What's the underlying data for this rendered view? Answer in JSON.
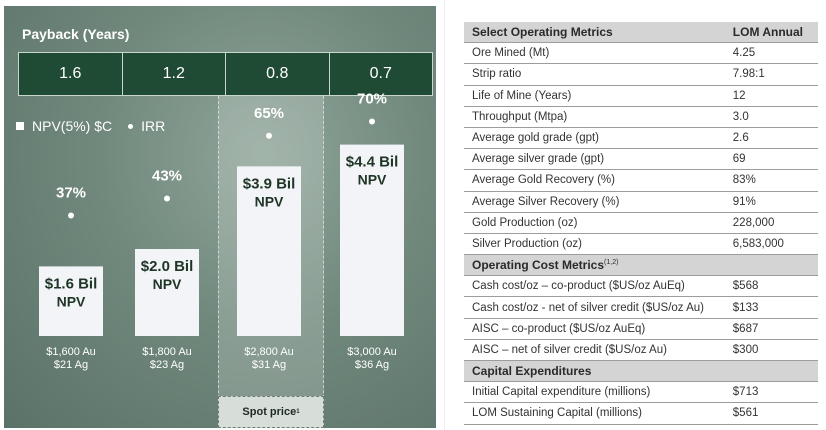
{
  "chart": {
    "title": "Payback (Years)",
    "payback_values": [
      "1.6",
      "1.2",
      "0.8",
      "0.7"
    ],
    "legend_npv": "NPV(5%) $C",
    "legend_irr": "IRR",
    "spot_price_label": "Spot price",
    "spot_price_sup": "1"
  },
  "chart_data": {
    "type": "bar",
    "categories": [
      "$1,600 Au\n$21 Ag",
      "$1,800 Au\n$23 Ag",
      "$2,800 Au\n$31 Ag",
      "$3,000 Au\n$36 Ag"
    ],
    "category_lines": [
      [
        "$1,600 Au",
        "$21 Ag"
      ],
      [
        "$1,800 Au",
        "$23 Ag"
      ],
      [
        "$2,800 Au",
        "$31 Ag"
      ],
      [
        "$3,000 Au",
        "$36 Ag"
      ]
    ],
    "series": [
      {
        "name": "NPV(5%) $C",
        "values": [
          1.6,
          2.0,
          3.9,
          4.4
        ],
        "labels": [
          [
            "$1.6 Bil",
            "NPV"
          ],
          [
            "$2.0 Bil",
            "NPV"
          ],
          [
            "$3.9 Bil",
            "NPV"
          ],
          [
            "$4.4 Bil",
            "NPV"
          ]
        ]
      },
      {
        "name": "IRR",
        "values": [
          37,
          43,
          65,
          70
        ],
        "labels": [
          "37%",
          "43%",
          "65%",
          "70%"
        ]
      }
    ],
    "payback_years": [
      1.6,
      1.2,
      0.8,
      0.7
    ],
    "highlight_categories": [
      2
    ],
    "colors": {
      "bar": "#f2f4f7",
      "panel": "#6e867a",
      "payback": "#1f4a33",
      "text": "#ffffff"
    }
  },
  "table": {
    "sections": [
      {
        "title": "Select Operating Metrics",
        "title_sup": "",
        "col2": "LOM Annual",
        "rows": [
          [
            "Ore Mined (Mt)",
            "4.25"
          ],
          [
            "Strip ratio",
            "7.98:1"
          ],
          [
            "Life of Mine (Years)",
            "12"
          ],
          [
            "Throughput (Mtpa)",
            "3.0"
          ],
          [
            "Average gold grade (gpt)",
            "2.6"
          ],
          [
            "Average silver grade (gpt)",
            "69"
          ],
          [
            "Average Gold Recovery (%)",
            "83%"
          ],
          [
            "Average Silver Recovery (%)",
            "91%"
          ],
          [
            "Gold Production (oz)",
            "228,000"
          ],
          [
            "Silver Production (oz)",
            "6,583,000"
          ]
        ]
      },
      {
        "title": "Operating Cost Metrics",
        "title_sup": "(1,2)",
        "col2": "",
        "rows": [
          [
            "Cash cost/oz – co-product ($US/oz AuEq)",
            "$568"
          ],
          [
            "Cash cost/oz - net of silver credit ($US/oz Au)",
            "$133"
          ],
          [
            "AISC – co-product ($US/oz AuEq)",
            "$687"
          ],
          [
            "AISC – net of silver credit ($US/oz Au)",
            "$300"
          ]
        ]
      },
      {
        "title": "Capital Expenditures",
        "title_sup": "",
        "col2": "",
        "rows": [
          [
            "Initial Capital expenditure (millions)",
            "$713"
          ],
          [
            "LOM Sustaining Capital (millions)",
            "$561"
          ]
        ]
      }
    ]
  }
}
